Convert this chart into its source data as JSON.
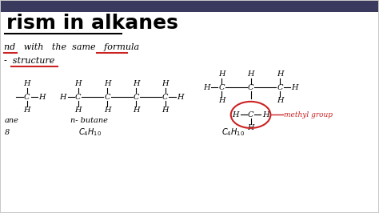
{
  "bg_color": "#c8c8c8",
  "slide_bg": "#ffffff",
  "title_text": "rism in alkanes",
  "subtitle_line1": "nd   with   the  same   formula",
  "subtitle_line2": "-  structure",
  "underline_color": "#cc2222",
  "circle_color": "#cc2222",
  "methyl_label": "methyl group",
  "n_butane_label": "n- butane",
  "ane_label": "ane",
  "g_label": "8"
}
